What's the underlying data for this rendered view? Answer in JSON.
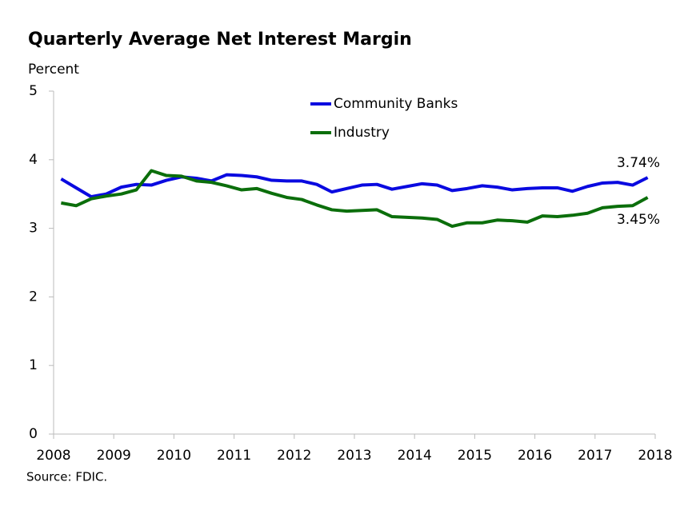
{
  "chart_data": {
    "type": "line",
    "title": "Quarterly Average Net Interest Margin",
    "y_label": "Percent",
    "source": "Source: FDIC.",
    "x": [
      2008.125,
      2008.375,
      2008.625,
      2008.875,
      2009.125,
      2009.375,
      2009.625,
      2009.875,
      2010.125,
      2010.375,
      2010.625,
      2010.875,
      2011.125,
      2011.375,
      2011.625,
      2011.875,
      2012.125,
      2012.375,
      2012.625,
      2012.875,
      2013.125,
      2013.375,
      2013.625,
      2013.875,
      2014.125,
      2014.375,
      2014.625,
      2014.875,
      2015.125,
      2015.375,
      2015.625,
      2015.875,
      2016.125,
      2016.375,
      2016.625,
      2016.875,
      2017.125,
      2017.375,
      2017.625,
      2017.875
    ],
    "series": [
      {
        "name": "Community Banks",
        "color": "#0a0ae0",
        "values": [
          3.72,
          3.59,
          3.46,
          3.5,
          3.6,
          3.64,
          3.63,
          3.7,
          3.75,
          3.73,
          3.69,
          3.78,
          3.77,
          3.75,
          3.7,
          3.69,
          3.69,
          3.64,
          3.53,
          3.58,
          3.63,
          3.64,
          3.57,
          3.61,
          3.65,
          3.63,
          3.55,
          3.58,
          3.62,
          3.6,
          3.56,
          3.58,
          3.59,
          3.59,
          3.54,
          3.61,
          3.66,
          3.67,
          3.63,
          3.74
        ],
        "value_labels": [
          null,
          null,
          null,
          null,
          null,
          null,
          null,
          null,
          null,
          null,
          null,
          null,
          null,
          null,
          null,
          null,
          null,
          null,
          null,
          null,
          null,
          null,
          null,
          null,
          null,
          null,
          null,
          null,
          null,
          null,
          null,
          null,
          null,
          null,
          null,
          null,
          null,
          null,
          null,
          "3.74%"
        ]
      },
      {
        "name": "Industry",
        "color": "#0b6e0b",
        "values": [
          3.37,
          3.33,
          3.43,
          3.47,
          3.5,
          3.56,
          3.84,
          3.77,
          3.76,
          3.69,
          3.67,
          3.62,
          3.56,
          3.58,
          3.51,
          3.45,
          3.42,
          3.34,
          3.27,
          3.25,
          3.26,
          3.27,
          3.17,
          3.16,
          3.15,
          3.13,
          3.03,
          3.08,
          3.08,
          3.12,
          3.11,
          3.09,
          3.18,
          3.17,
          3.19,
          3.22,
          3.3,
          3.32,
          3.33,
          3.45
        ],
        "value_labels": [
          null,
          null,
          null,
          null,
          null,
          null,
          null,
          null,
          null,
          null,
          null,
          null,
          null,
          null,
          null,
          null,
          null,
          null,
          null,
          null,
          null,
          null,
          null,
          null,
          null,
          null,
          null,
          null,
          null,
          null,
          null,
          null,
          null,
          null,
          null,
          null,
          null,
          null,
          null,
          "3.45%"
        ]
      }
    ],
    "xlim": [
      2008,
      2018
    ],
    "xticks": [
      2008,
      2009,
      2010,
      2011,
      2012,
      2013,
      2014,
      2015,
      2016,
      2017,
      2018
    ],
    "ylim": [
      0,
      5
    ],
    "yticks": [
      0,
      1,
      2,
      3,
      4,
      5
    ],
    "grid": false,
    "legend": "top"
  }
}
